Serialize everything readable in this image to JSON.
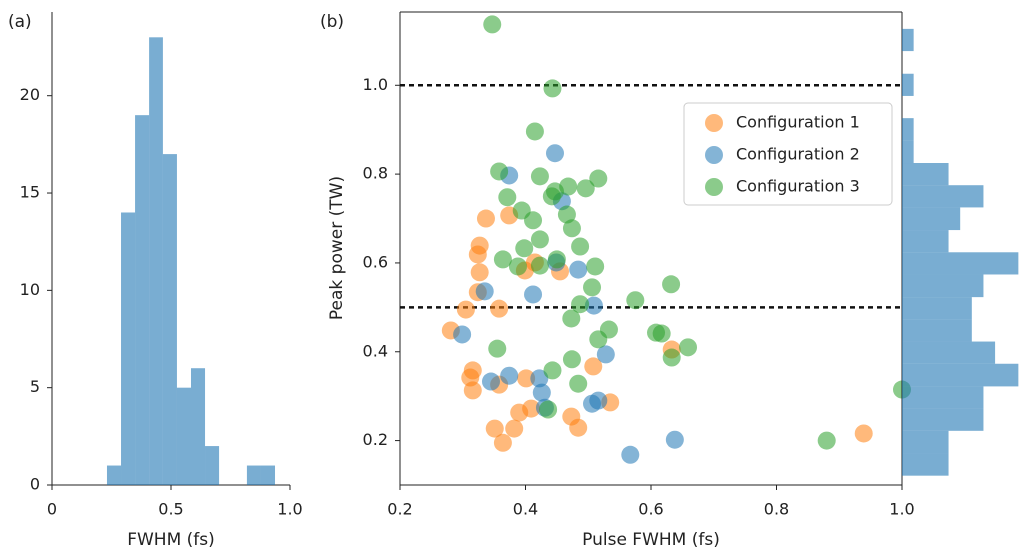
{
  "chart_data": [
    {
      "type": "histogram",
      "panel_label": "(a)",
      "xlabel": "FWHM (fs)",
      "bins": [
        0.231,
        0.29,
        0.349,
        0.408,
        0.466,
        0.525,
        0.584,
        0.643,
        0.702,
        0.76,
        0.819,
        0.878,
        0.937
      ],
      "counts": [
        1,
        14,
        19,
        23,
        17,
        5,
        6,
        2,
        0,
        0,
        1,
        1
      ],
      "color": "#1f77b4",
      "alpha": 0.6,
      "xlim": [
        0,
        1
      ],
      "xticks": [
        0,
        0.5,
        {
          "value": 1,
          "label": "1.0"
        }
      ],
      "ylim": [
        0,
        24.3
      ],
      "yticks": [
        0,
        5,
        10,
        15,
        20
      ]
    },
    {
      "type": "scatter",
      "panel_label": "(b)",
      "xlabel": "Pulse FWHM (fs)",
      "ylabel": "Peak power (TW)",
      "xlim": [
        0.2,
        1.0
      ],
      "xticks": [
        0.2,
        0.4,
        0.6,
        0.8,
        {
          "value": 1,
          "label": "1.0"
        }
      ],
      "ylim": [
        0.1,
        1.165
      ],
      "yticks": [
        0.2,
        0.4,
        0.6,
        0.8,
        {
          "value": 1,
          "label": "1.0"
        }
      ],
      "hlines": [
        1,
        0.5
      ],
      "legend": "upper right",
      "alpha": 0.55,
      "series": [
        {
          "name": "Configuration 1",
          "color": "#ff7f0e",
          "x": [
            0.281,
            0.305,
            0.324,
            0.327,
            0.324,
            0.327,
            0.337,
            0.358,
            0.316,
            0.312,
            0.316,
            0.358,
            0.351,
            0.364,
            0.382,
            0.39,
            0.409,
            0.401,
            0.415,
            0.399,
            0.374,
            0.455,
            0.473,
            0.484,
            0.508,
            0.535,
            0.633,
            0.939
          ],
          "y": [
            0.448,
            0.495,
            0.534,
            0.579,
            0.619,
            0.639,
            0.7,
            0.497,
            0.358,
            0.342,
            0.313,
            0.326,
            0.227,
            0.195,
            0.227,
            0.263,
            0.272,
            0.34,
            0.601,
            0.583,
            0.707,
            0.581,
            0.254,
            0.229,
            0.367,
            0.286,
            0.405,
            0.216
          ]
        },
        {
          "name": "Configuration 2",
          "color": "#1f77b4",
          "x": [
            0.299,
            0.335,
            0.345,
            0.374,
            0.374,
            0.412,
            0.422,
            0.426,
            0.431,
            0.447,
            0.449,
            0.458,
            0.484,
            0.509,
            0.506,
            0.516,
            0.528,
            0.567,
            0.638
          ],
          "y": [
            0.439,
            0.536,
            0.333,
            0.797,
            0.346,
            0.529,
            0.34,
            0.308,
            0.274,
            0.847,
            0.601,
            0.739,
            0.585,
            0.504,
            0.283,
            0.29,
            0.394,
            0.168,
            0.202
          ]
        },
        {
          "name": "Configuration 3",
          "color": "#2ca02c",
          "x": [
            0.347,
            0.443,
            0.415,
            0.358,
            0.423,
            0.516,
            0.371,
            0.447,
            0.468,
            0.496,
            0.442,
            0.394,
            0.412,
            0.466,
            0.474,
            0.423,
            0.398,
            0.487,
            0.364,
            0.388,
            0.423,
            0.45,
            0.511,
            0.506,
            0.487,
            0.575,
            0.632,
            0.473,
            0.533,
            0.516,
            0.608,
            0.617,
            0.659,
            0.633,
            0.355,
            0.443,
            0.474,
            0.484,
            0.436,
            0.88,
            1.0
          ],
          "y": [
            1.137,
            0.993,
            0.896,
            0.806,
            0.795,
            0.79,
            0.748,
            0.761,
            0.772,
            0.768,
            0.75,
            0.718,
            0.696,
            0.709,
            0.678,
            0.653,
            0.633,
            0.637,
            0.608,
            0.592,
            0.594,
            0.608,
            0.592,
            0.545,
            0.507,
            0.516,
            0.552,
            0.475,
            0.45,
            0.428,
            0.443,
            0.441,
            0.41,
            0.387,
            0.407,
            0.358,
            0.383,
            0.328,
            0.27,
            0.2,
            0.315
          ]
        }
      ]
    },
    {
      "type": "histogram",
      "orientation": "horizontal",
      "bins": [
        0.121,
        0.171,
        0.222,
        0.272,
        0.322,
        0.373,
        0.423,
        0.473,
        0.523,
        0.574,
        0.624,
        0.674,
        0.725,
        0.775,
        0.825,
        0.876,
        0.926,
        0.976,
        1.026,
        1.077,
        1.127
      ],
      "counts": [
        4,
        4,
        7,
        7,
        10,
        8,
        6,
        6,
        7,
        10,
        4,
        5,
        7,
        4,
        1,
        1,
        0,
        1,
        0,
        1
      ],
      "color": "#1f77b4",
      "alpha": 0.6,
      "xlim": [
        0,
        11
      ],
      "ylim": [
        0.1,
        1.165
      ]
    }
  ]
}
